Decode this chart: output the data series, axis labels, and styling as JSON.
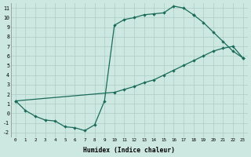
{
  "xlabel": "Humidex (Indice chaleur)",
  "background_color": "#cce8e0",
  "line_color": "#1a6b5a",
  "grid_color": "#aaccc4",
  "xlim": [
    -0.5,
    23.5
  ],
  "ylim": [
    -2.5,
    11.5
  ],
  "xticks": [
    0,
    1,
    2,
    3,
    4,
    5,
    6,
    7,
    8,
    9,
    10,
    11,
    12,
    13,
    14,
    15,
    16,
    17,
    18,
    19,
    20,
    21,
    22,
    23
  ],
  "yticks": [
    -2,
    -1,
    0,
    1,
    2,
    3,
    4,
    5,
    6,
    7,
    8,
    9,
    10,
    11
  ],
  "curve1_x": [
    0,
    1,
    2,
    3,
    4,
    5,
    6,
    7,
    8,
    9,
    10,
    11,
    12,
    13,
    14,
    15,
    16,
    17,
    18
  ],
  "curve1_y": [
    1.3,
    0.3,
    -0.3,
    -0.7,
    -0.8,
    -1.4,
    -1.5,
    -1.8,
    -1.2,
    1.3,
    9.2,
    9.8,
    10.0,
    10.3,
    10.4,
    10.5,
    11.2,
    11.0,
    10.3
  ],
  "curve2_x": [
    0,
    10,
    11,
    12,
    13,
    14,
    15,
    16,
    17,
    18,
    19,
    20,
    21,
    22,
    23
  ],
  "curve2_y": [
    1.3,
    2.2,
    2.5,
    2.8,
    3.2,
    3.5,
    4.0,
    4.5,
    5.0,
    5.5,
    6.0,
    6.5,
    6.8,
    7.0,
    5.8
  ],
  "curve3_x": [
    18,
    19,
    20,
    21,
    22,
    23
  ],
  "curve3_y": [
    10.3,
    9.5,
    8.5,
    7.5,
    6.5,
    5.8
  ],
  "font_family": "monospace"
}
